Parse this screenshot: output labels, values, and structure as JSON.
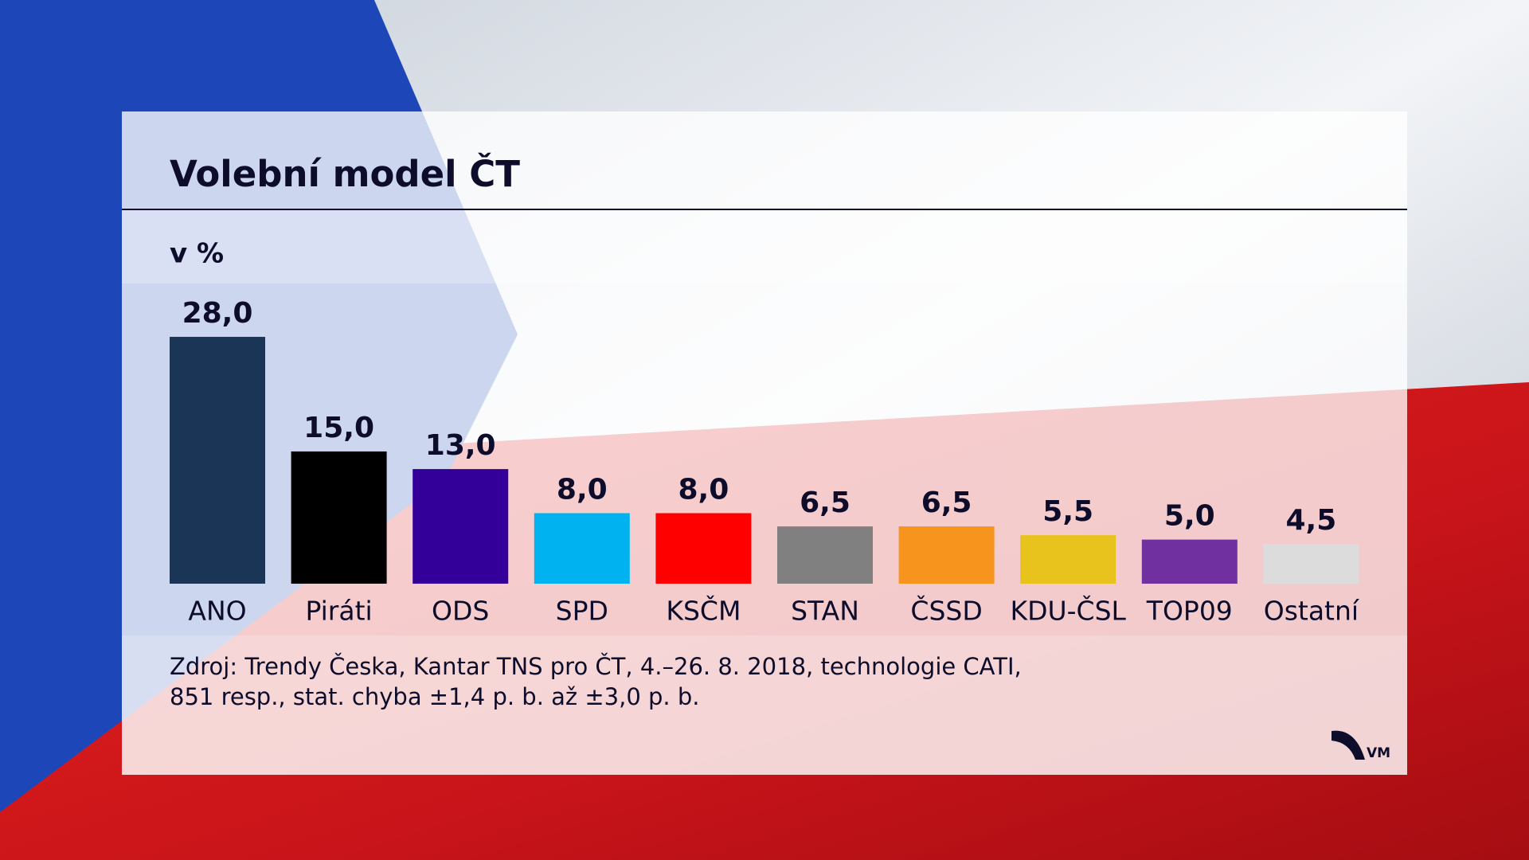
{
  "chart_data": {
    "type": "bar",
    "title": "Volební model ČT",
    "subtitle": "v %",
    "categories": [
      "ANO",
      "Piráti",
      "ODS",
      "SPD",
      "KSČM",
      "STAN",
      "ČSSD",
      "KDU-ČSL",
      "TOP09",
      "Ostatní"
    ],
    "values": [
      28.0,
      15.0,
      13.0,
      8.0,
      8.0,
      6.5,
      6.5,
      5.5,
      5.0,
      4.5
    ],
    "value_labels": [
      "28,0",
      "15,0",
      "13,0",
      "8,0",
      "8,0",
      "6,5",
      "6,5",
      "5,5",
      "5,0",
      "4,5"
    ],
    "colors": [
      "#1a3556",
      "#000000",
      "#330099",
      "#00b3f0",
      "#ff0000",
      "#808080",
      "#f7941d",
      "#e8c31e",
      "#7030a0",
      "#dcdcdc"
    ],
    "source": [
      "Zdroj: Trendy Česka, Kantar TNS pro ČT,  4.–26. 8. 2018, technologie CATI,",
      "851 resp., stat. chyba ±1,4  p. b. až ±3,0 p. b."
    ],
    "logo": "VM"
  }
}
